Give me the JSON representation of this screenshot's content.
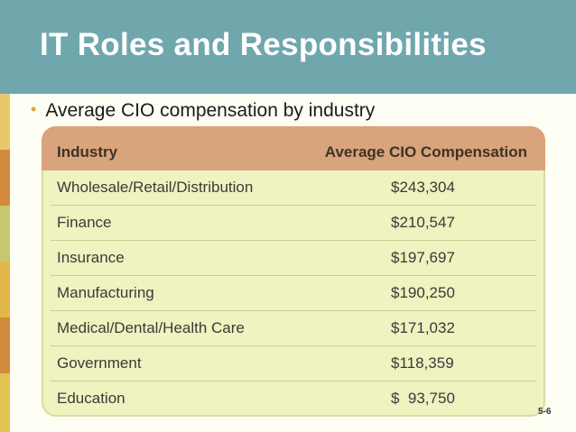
{
  "slide": {
    "title": "IT Roles and Responsibilities",
    "bullet": "Average CIO compensation by industry",
    "slide_number": "5-6"
  },
  "table": {
    "headers": [
      "Industry",
      "Average CIO Compensation"
    ],
    "rows": [
      {
        "industry": "Wholesale/Retail/Distribution",
        "compensation": "$243,304"
      },
      {
        "industry": "Finance",
        "compensation": "$210,547"
      },
      {
        "industry": "Insurance",
        "compensation": "$197,697"
      },
      {
        "industry": "Manufacturing",
        "compensation": "$190,250"
      },
      {
        "industry": "Medical/Dental/Health Care",
        "compensation": "$171,032"
      },
      {
        "industry": "Government",
        "compensation": "$118,359"
      },
      {
        "industry": "Education",
        "compensation": "$  93,750"
      }
    ]
  },
  "colors": {
    "title_bar": "#6fa7ad",
    "header_row": "#d9a37b",
    "table_body": "#eef3bf",
    "bullet": "#e0a92f"
  }
}
